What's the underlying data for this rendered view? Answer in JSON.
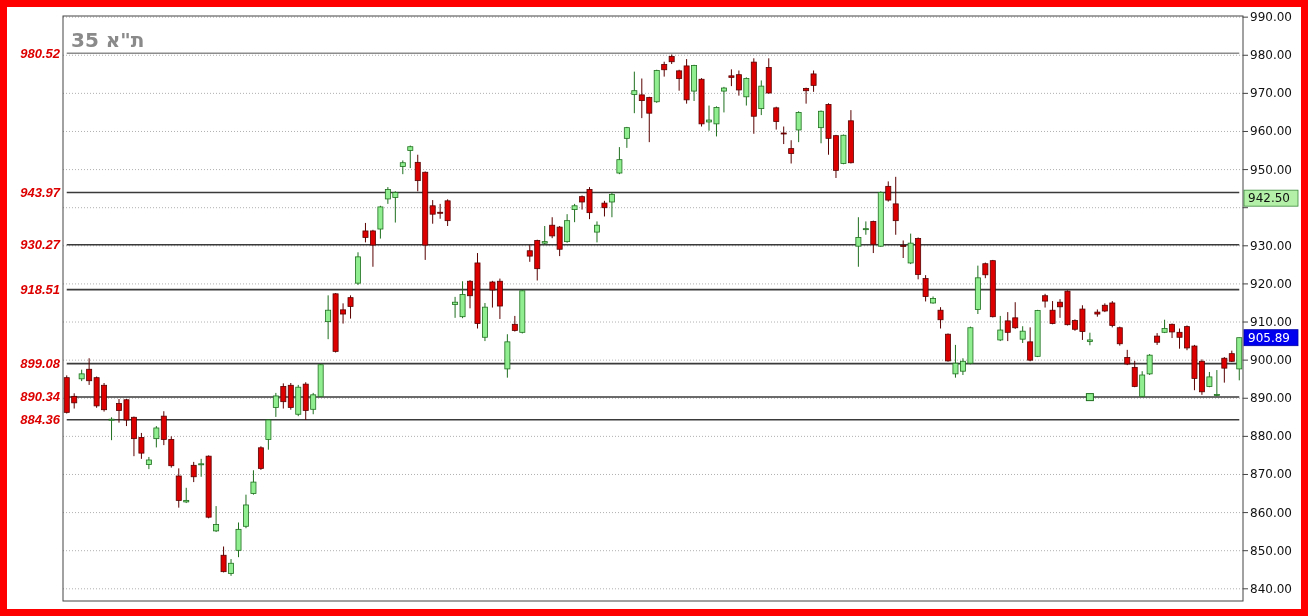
{
  "chart_data": {
    "type": "candlestick",
    "title": "ת\"א 35",
    "categories": [
      null,
      null,
      null,
      null,
      null,
      null,
      null,
      null,
      null,
      null,
      null,
      null,
      null,
      null,
      null,
      null,
      null,
      null,
      null,
      null,
      null,
      null,
      null,
      null,
      null,
      null,
      null,
      null,
      null,
      null,
      null,
      null,
      null,
      null,
      null,
      null,
      null,
      null,
      null,
      null,
      null,
      null,
      null,
      null,
      null,
      null,
      null,
      null,
      null,
      null,
      null,
      null,
      null,
      null,
      null,
      null,
      null,
      null,
      null,
      null,
      null,
      null,
      null,
      null,
      null,
      null,
      null,
      null,
      null,
      null,
      null,
      null,
      null,
      null,
      null,
      null,
      null,
      null,
      null,
      null,
      null,
      null,
      null,
      null,
      null,
      null,
      null,
      null,
      null,
      null,
      null,
      null,
      null,
      null,
      null,
      null,
      null,
      null,
      null,
      null,
      null,
      null,
      null,
      null,
      null,
      null,
      null,
      null,
      null,
      null,
      null,
      null,
      null,
      null,
      null,
      null,
      null,
      null,
      null,
      null,
      null,
      null,
      null,
      null,
      null,
      null,
      null,
      null,
      null,
      null,
      null,
      null,
      null,
      null,
      null,
      null,
      null,
      null,
      null,
      null,
      null,
      null,
      null,
      null,
      null,
      null,
      null,
      null,
      null,
      null,
      null,
      null,
      null,
      null,
      null,
      null,
      null,
      null
    ],
    "ohlc": [
      [
        895.4,
        896,
        886,
        886.3
      ],
      [
        890.5,
        891.3,
        887.3,
        888.8
      ],
      [
        895.1,
        897.5,
        894.5,
        896.4
      ],
      [
        897.6,
        900.5,
        893.5,
        894.6
      ],
      [
        895.4,
        895.7,
        887.5,
        888
      ],
      [
        893.4,
        894,
        886.5,
        887
      ],
      [
        884.5,
        885,
        879,
        884.5
      ],
      [
        888.6,
        889.8,
        883.6,
        886.8
      ],
      [
        889.6,
        889.8,
        882.7,
        884.3
      ],
      [
        885,
        885.2,
        874.8,
        879.4
      ],
      [
        879.7,
        880.9,
        874.1,
        875.6
      ],
      [
        872.6,
        874.6,
        871.4,
        873.8
      ],
      [
        879.4,
        882.7,
        877.1,
        882.2
      ],
      [
        885.3,
        886.6,
        877.7,
        879.2
      ],
      [
        879.2,
        880,
        871.8,
        872.3
      ],
      [
        869.6,
        871.6,
        861.3,
        863.2
      ],
      [
        862.8,
        866.5,
        862.5,
        863.2
      ],
      [
        872.4,
        873.3,
        868,
        869.4
      ],
      [
        872.6,
        874.1,
        869.4,
        872.8
      ],
      [
        874.8,
        875,
        858.5,
        858.8
      ],
      [
        855.2,
        861.7,
        854.9,
        856.9
      ],
      [
        848.8,
        851.1,
        844.3,
        844.5
      ],
      [
        844,
        847.8,
        843.4,
        846.7
      ],
      [
        850.1,
        857.4,
        848.3,
        855.6
      ],
      [
        856.4,
        864.7,
        855.9,
        862
      ],
      [
        865,
        871.1,
        864.7,
        868
      ],
      [
        877,
        877.4,
        871.2,
        871.6
      ],
      [
        879.2,
        884.5,
        876.5,
        884.3
      ],
      [
        887.6,
        891.4,
        885.1,
        890.6
      ],
      [
        893.1,
        893.9,
        887.3,
        889.1
      ],
      [
        893.4,
        894,
        887,
        887.6
      ],
      [
        885.8,
        893.5,
        885.3,
        892.9
      ],
      [
        893.7,
        894.2,
        884.3,
        886.8
      ],
      [
        887.1,
        891.4,
        885.8,
        890.9
      ],
      [
        890.5,
        899,
        890.5,
        898.8
      ],
      [
        910.1,
        917,
        905.5,
        913.1
      ],
      [
        917.4,
        917.6,
        902,
        902.3
      ],
      [
        913.2,
        914.9,
        909.6,
        912.1
      ],
      [
        916.4,
        917,
        910.9,
        914.1
      ],
      [
        920.2,
        928.3,
        919.7,
        927.1
      ],
      [
        933.9,
        936,
        930.9,
        932.2
      ],
      [
        933.9,
        934.2,
        924.5,
        930.2
      ],
      [
        934.4,
        940.5,
        931.9,
        940.2
      ],
      [
        942.3,
        945.4,
        941,
        944.8
      ],
      [
        942.7,
        944.3,
        936.1,
        944
      ],
      [
        950.8,
        952.4,
        948.8,
        951.8
      ],
      [
        955,
        956.3,
        950.4,
        956
      ],
      [
        951.9,
        953.9,
        944.3,
        947.1
      ],
      [
        949.3,
        949.5,
        926.3,
        930.2
      ],
      [
        940.5,
        942,
        935.8,
        938.3
      ],
      [
        938.8,
        941,
        937.1,
        938.6
      ],
      [
        941.8,
        942.2,
        935.2,
        936.6
      ],
      [
        914.6,
        916.6,
        911.1,
        915.2
      ],
      [
        911.4,
        920.7,
        911,
        917.2
      ],
      [
        920.7,
        921,
        913.6,
        916.9
      ],
      [
        925.5,
        928.1,
        908.3,
        909.6
      ],
      [
        906,
        915,
        905,
        913.9
      ],
      [
        920.5,
        920.8,
        913.8,
        918.4
      ],
      [
        920.7,
        921.4,
        910.8,
        914.2
      ],
      [
        897.7,
        906.8,
        895.4,
        904.8
      ],
      [
        909.4,
        911.6,
        907.5,
        907.8
      ],
      [
        907.3,
        918.4,
        907,
        918.2
      ],
      [
        928.7,
        930.2,
        925.8,
        927.3
      ],
      [
        931.4,
        931.6,
        920.9,
        924
      ],
      [
        930.7,
        935.2,
        930.3,
        931.1
      ],
      [
        935.4,
        937.5,
        932,
        932.6
      ],
      [
        934.9,
        935.2,
        927.3,
        929.1
      ],
      [
        931.1,
        938.3,
        930.8,
        936.6
      ],
      [
        939.5,
        941,
        936.2,
        940.5
      ],
      [
        942.9,
        943.2,
        939.5,
        941.5
      ],
      [
        944.8,
        945.4,
        937,
        938.7
      ],
      [
        933.6,
        936.4,
        930.9,
        935.4
      ],
      [
        941.2,
        941.8,
        937.7,
        940
      ],
      [
        941.5,
        944,
        937.5,
        943.5
      ],
      [
        949.1,
        955.9,
        948.8,
        952.6
      ],
      [
        958.2,
        961.2,
        955.7,
        961
      ],
      [
        969.7,
        975.7,
        964.8,
        970.7
      ],
      [
        969.6,
        973.9,
        963.5,
        968.1
      ],
      [
        968.9,
        969.1,
        957.2,
        964.8
      ],
      [
        967.8,
        976.2,
        967.5,
        976
      ],
      [
        977.6,
        978.3,
        974.4,
        976.2
      ],
      [
        979.7,
        980.2,
        977.7,
        978.3
      ],
      [
        975.9,
        976.2,
        970.7,
        973.9
      ],
      [
        977.2,
        979,
        967.3,
        968.3
      ],
      [
        970.6,
        977.5,
        968,
        977.3
      ],
      [
        973.7,
        974,
        961.3,
        962
      ],
      [
        962.5,
        966.8,
        960.2,
        963
      ],
      [
        962,
        966.6,
        958.7,
        966.3
      ],
      [
        970.6,
        971.7,
        965,
        971.4
      ],
      [
        974.6,
        976.3,
        971.9,
        974.2
      ],
      [
        974.9,
        976,
        969.4,
        970.9
      ],
      [
        969.1,
        974.2,
        966.8,
        973.9
      ],
      [
        978.2,
        979.2,
        959.4,
        964
      ],
      [
        966,
        973.4,
        964.3,
        971.9
      ],
      [
        976.8,
        979.2,
        969.9,
        970.1
      ],
      [
        966.2,
        966.5,
        960.5,
        962.6
      ],
      [
        959.6,
        961.3,
        956.7,
        959.4
      ],
      [
        955.5,
        957.7,
        951.6,
        954.2
      ],
      [
        960.4,
        965.3,
        957.2,
        965
      ],
      [
        971.3,
        971.5,
        967.3,
        970.7
      ],
      [
        975.1,
        976,
        970.4,
        972.1
      ],
      [
        961,
        965.5,
        956.9,
        965.3
      ],
      [
        967.1,
        967.4,
        953.9,
        958.2
      ],
      [
        958.9,
        959.1,
        947.8,
        949.8
      ],
      [
        951.6,
        959.2,
        951.4,
        959
      ],
      [
        962.8,
        965.6,
        951.6,
        951.8
      ],
      [
        929.9,
        937.5,
        924.5,
        932.2
      ],
      [
        934.3,
        936.4,
        932.9,
        934.5
      ],
      [
        936.4,
        936.6,
        928.1,
        930.4
      ],
      [
        929.9,
        944.3,
        929.7,
        944
      ],
      [
        945.6,
        946.9,
        941.6,
        942
      ],
      [
        941,
        948.1,
        932.9,
        936.6
      ],
      [
        930.1,
        931.4,
        926.8,
        929.9
      ],
      [
        925.5,
        933.2,
        925.2,
        930.7
      ],
      [
        931.9,
        932.2,
        921.2,
        922.5
      ],
      [
        921.4,
        922.3,
        915.4,
        916.7
      ],
      [
        915,
        916.7,
        914.8,
        916.2
      ],
      [
        913.1,
        913.9,
        908.3,
        910.6
      ],
      [
        906.8,
        907,
        899.6,
        899.8
      ],
      [
        896.4,
        904,
        895.4,
        899.2
      ],
      [
        897.1,
        900.5,
        896.1,
        899.7
      ],
      [
        899.2,
        908.8,
        898.9,
        908.5
      ],
      [
        913.3,
        924.8,
        912.1,
        921.6
      ],
      [
        925.3,
        925.6,
        921.5,
        922.4
      ],
      [
        926.1,
        926.3,
        911.2,
        911.4
      ],
      [
        905.3,
        911.6,
        905,
        907.9
      ],
      [
        910.3,
        912.6,
        905,
        907.3
      ],
      [
        911.1,
        915.2,
        908.2,
        908.5
      ],
      [
        905.5,
        908.9,
        904.5,
        907.6
      ],
      [
        904.8,
        908.6,
        899.7,
        900
      ],
      [
        901,
        913.2,
        900.8,
        913
      ],
      [
        916.9,
        917.4,
        913.8,
        915.5
      ],
      [
        913.1,
        915.5,
        909.4,
        909.6
      ],
      [
        915.2,
        916,
        911.1,
        914
      ],
      [
        918.1,
        918.3,
        909.1,
        909.3
      ],
      [
        910.4,
        910.7,
        907.7,
        908.1
      ],
      [
        913.4,
        914.4,
        905.3,
        907.5
      ],
      [
        904.9,
        907.2,
        903.9,
        905.3
      ],
      [
        912.6,
        913.3,
        911.4,
        912.1
      ],
      [
        914.4,
        914.9,
        912.6,
        912.9
      ],
      [
        915,
        915.5,
        908.6,
        909.1
      ],
      [
        908.5,
        908.8,
        903.8,
        904.3
      ],
      [
        900.7,
        902.7,
        898.7,
        899
      ],
      [
        898.1,
        899.8,
        892.9,
        893.1
      ],
      [
        890.5,
        897.1,
        890.3,
        896.1
      ],
      [
        896.4,
        901.6,
        896.1,
        901.3
      ],
      [
        906.3,
        907.1,
        904,
        904.7
      ],
      [
        907.3,
        910.6,
        907.1,
        908.3
      ],
      [
        909.4,
        909.6,
        905.8,
        907.4
      ],
      [
        907.3,
        908.3,
        903,
        906
      ],
      [
        908.8,
        909.1,
        902.6,
        903.2
      ],
      [
        903.7,
        904,
        892.1,
        895.2
      ],
      [
        899.7,
        900.2,
        890.9,
        891.7
      ],
      [
        893.1,
        896.9,
        892.9,
        895.6
      ],
      [
        891,
        897.4,
        890.5,
        891
      ],
      [
        900.5,
        900.8,
        894.1,
        897.9
      ],
      [
        901.7,
        902.5,
        899.5,
        899.7
      ],
      [
        897.7,
        905.9,
        894.7,
        905.89
      ]
    ],
    "series": [
      {
        "type": "line",
        "name": "980.52",
        "color": "#8c8c8c",
        "values": [
          980.52,
          980.52,
          980.52,
          980.52,
          980.52,
          980.52,
          980.52,
          980.52,
          980.52,
          980.52,
          980.52,
          980.52,
          980.52,
          980.52,
          980.52,
          980.52,
          980.52,
          980.52,
          980.52,
          980.52,
          980.52,
          980.52,
          980.52,
          980.52,
          980.52,
          980.52,
          980.52,
          980.52,
          980.52,
          980.52,
          980.52,
          980.52,
          980.52,
          980.52,
          980.52,
          980.52,
          980.52,
          980.52,
          980.52,
          980.52,
          980.52,
          980.52,
          980.52,
          980.52,
          980.52,
          980.52,
          980.52,
          980.52,
          980.52,
          980.52,
          980.52,
          980.52,
          980.52,
          980.52,
          980.52,
          980.52,
          980.52,
          980.52,
          980.52,
          980.52,
          980.52,
          980.52,
          980.52,
          980.52,
          980.52,
          980.52,
          980.52,
          980.52,
          980.52,
          980.52,
          980.52,
          980.52,
          980.52,
          980.52,
          980.52,
          980.52,
          980.52,
          980.52,
          980.52,
          980.52,
          980.52,
          980.52,
          980.52,
          980.52,
          980.52,
          980.52,
          980.52,
          980.52,
          980.52,
          980.52,
          980.52,
          980.52,
          980.52,
          980.52,
          980.52,
          980.52,
          980.52,
          980.52,
          980.52,
          980.52,
          980.52,
          980.52,
          980.52,
          980.52,
          980.52,
          980.52,
          980.52,
          980.52,
          980.52,
          980.52,
          980.52,
          980.52,
          980.52,
          980.52,
          980.52,
          980.52,
          980.52,
          980.52,
          980.52,
          980.52,
          980.52,
          980.52,
          980.52,
          980.52,
          980.52,
          980.52,
          980.52,
          980.52,
          980.52,
          980.52,
          980.52,
          980.52,
          980.52,
          980.52,
          980.52,
          980.52,
          980.52,
          980.52,
          980.52,
          980.52,
          980.52,
          980.52,
          980.52,
          980.52,
          980.52,
          980.52,
          980.52,
          980.52,
          980.52,
          980.52,
          980.52,
          980.52,
          980.52,
          980.52,
          980.52,
          980.52,
          980.52,
          980.52
        ]
      },
      {
        "type": "line",
        "name": "943.97",
        "color": "#3a3a3a",
        "values": [
          943.97,
          943.97,
          943.97,
          943.97,
          943.97,
          943.97,
          943.97,
          943.97,
          943.97,
          943.97,
          943.97,
          943.97,
          943.97,
          943.97,
          943.97,
          943.97,
          943.97,
          943.97,
          943.97,
          943.97,
          943.97,
          943.97,
          943.97,
          943.97,
          943.97,
          943.97,
          943.97,
          943.97,
          943.97,
          943.97,
          943.97,
          943.97,
          943.97,
          943.97,
          943.97,
          943.97,
          943.97,
          943.97,
          943.97,
          943.97,
          943.97,
          943.97,
          943.97,
          943.97,
          943.97,
          943.97,
          943.97,
          943.97,
          943.97,
          943.97,
          943.97,
          943.97,
          943.97,
          943.97,
          943.97,
          943.97,
          943.97,
          943.97,
          943.97,
          943.97,
          943.97,
          943.97,
          943.97,
          943.97,
          943.97,
          943.97,
          943.97,
          943.97,
          943.97,
          943.97,
          943.97,
          943.97,
          943.97,
          943.97,
          943.97,
          943.97,
          943.97,
          943.97,
          943.97,
          943.97,
          943.97,
          943.97,
          943.97,
          943.97,
          943.97,
          943.97,
          943.97,
          943.97,
          943.97,
          943.97,
          943.97,
          943.97,
          943.97,
          943.97,
          943.97,
          943.97,
          943.97,
          943.97,
          943.97,
          943.97,
          943.97,
          943.97,
          943.97,
          943.97,
          943.97,
          943.97,
          943.97,
          943.97,
          943.97,
          943.97,
          943.97,
          943.97,
          943.97,
          943.97,
          943.97,
          943.97,
          943.97,
          943.97,
          943.97,
          943.97,
          943.97,
          943.97,
          943.97,
          943.97,
          943.97,
          943.97,
          943.97,
          943.97,
          943.97,
          943.97,
          943.97,
          943.97,
          943.97,
          943.97,
          943.97,
          943.97,
          943.97,
          943.97,
          943.97,
          943.97,
          943.97,
          943.97,
          943.97,
          943.97,
          943.97,
          943.97,
          943.97,
          943.97,
          943.97,
          943.97,
          943.97,
          943.97,
          943.97,
          943.97,
          943.97,
          943.97,
          943.97,
          943.97
        ]
      },
      {
        "type": "line",
        "name": "930.27",
        "color": "#3a3a3a",
        "values": [
          930.27,
          930.27,
          930.27,
          930.27,
          930.27,
          930.27,
          930.27,
          930.27,
          930.27,
          930.27,
          930.27,
          930.27,
          930.27,
          930.27,
          930.27,
          930.27,
          930.27,
          930.27,
          930.27,
          930.27,
          930.27,
          930.27,
          930.27,
          930.27,
          930.27,
          930.27,
          930.27,
          930.27,
          930.27,
          930.27,
          930.27,
          930.27,
          930.27,
          930.27,
          930.27,
          930.27,
          930.27,
          930.27,
          930.27,
          930.27,
          930.27,
          930.27,
          930.27,
          930.27,
          930.27,
          930.27,
          930.27,
          930.27,
          930.27,
          930.27,
          930.27,
          930.27,
          930.27,
          930.27,
          930.27,
          930.27,
          930.27,
          930.27,
          930.27,
          930.27,
          930.27,
          930.27,
          930.27,
          930.27,
          930.27,
          930.27,
          930.27,
          930.27,
          930.27,
          930.27,
          930.27,
          930.27,
          930.27,
          930.27,
          930.27,
          930.27,
          930.27,
          930.27,
          930.27,
          930.27,
          930.27,
          930.27,
          930.27,
          930.27,
          930.27,
          930.27,
          930.27,
          930.27,
          930.27,
          930.27,
          930.27,
          930.27,
          930.27,
          930.27,
          930.27,
          930.27,
          930.27,
          930.27,
          930.27,
          930.27,
          930.27,
          930.27,
          930.27,
          930.27,
          930.27,
          930.27,
          930.27,
          930.27,
          930.27,
          930.27,
          930.27,
          930.27,
          930.27,
          930.27,
          930.27,
          930.27,
          930.27,
          930.27,
          930.27,
          930.27,
          930.27,
          930.27,
          930.27,
          930.27,
          930.27,
          930.27,
          930.27,
          930.27,
          930.27,
          930.27,
          930.27,
          930.27,
          930.27,
          930.27,
          930.27,
          930.27,
          930.27,
          930.27,
          930.27,
          930.27,
          930.27,
          930.27,
          930.27,
          930.27,
          930.27,
          930.27,
          930.27,
          930.27,
          930.27,
          930.27,
          930.27,
          930.27,
          930.27,
          930.27,
          930.27,
          930.27,
          930.27,
          930.27
        ]
      },
      {
        "type": "line",
        "name": "918.51",
        "color": "#3a3a3a",
        "values": [
          918.51,
          918.51,
          918.51,
          918.51,
          918.51,
          918.51,
          918.51,
          918.51,
          918.51,
          918.51,
          918.51,
          918.51,
          918.51,
          918.51,
          918.51,
          918.51,
          918.51,
          918.51,
          918.51,
          918.51,
          918.51,
          918.51,
          918.51,
          918.51,
          918.51,
          918.51,
          918.51,
          918.51,
          918.51,
          918.51,
          918.51,
          918.51,
          918.51,
          918.51,
          918.51,
          918.51,
          918.51,
          918.51,
          918.51,
          918.51,
          918.51,
          918.51,
          918.51,
          918.51,
          918.51,
          918.51,
          918.51,
          918.51,
          918.51,
          918.51,
          918.51,
          918.51,
          918.51,
          918.51,
          918.51,
          918.51,
          918.51,
          918.51,
          918.51,
          918.51,
          918.51,
          918.51,
          918.51,
          918.51,
          918.51,
          918.51,
          918.51,
          918.51,
          918.51,
          918.51,
          918.51,
          918.51,
          918.51,
          918.51,
          918.51,
          918.51,
          918.51,
          918.51,
          918.51,
          918.51,
          918.51,
          918.51,
          918.51,
          918.51,
          918.51,
          918.51,
          918.51,
          918.51,
          918.51,
          918.51,
          918.51,
          918.51,
          918.51,
          918.51,
          918.51,
          918.51,
          918.51,
          918.51,
          918.51,
          918.51,
          918.51,
          918.51,
          918.51,
          918.51,
          918.51,
          918.51,
          918.51,
          918.51,
          918.51,
          918.51,
          918.51,
          918.51,
          918.51,
          918.51,
          918.51,
          918.51,
          918.51,
          918.51,
          918.51,
          918.51,
          918.51,
          918.51,
          918.51,
          918.51,
          918.51,
          918.51,
          918.51,
          918.51,
          918.51,
          918.51,
          918.51,
          918.51,
          918.51,
          918.51,
          918.51,
          918.51,
          918.51,
          918.51,
          918.51,
          918.51,
          918.51,
          918.51,
          918.51,
          918.51,
          918.51,
          918.51,
          918.51,
          918.51,
          918.51,
          918.51,
          918.51,
          918.51,
          918.51,
          918.51,
          918.51,
          918.51,
          918.51,
          918.51
        ]
      },
      {
        "type": "line",
        "name": "899.08",
        "color": "#3a3a3a",
        "values": [
          899.08,
          899.08,
          899.08,
          899.08,
          899.08,
          899.08,
          899.08,
          899.08,
          899.08,
          899.08,
          899.08,
          899.08,
          899.08,
          899.08,
          899.08,
          899.08,
          899.08,
          899.08,
          899.08,
          899.08,
          899.08,
          899.08,
          899.08,
          899.08,
          899.08,
          899.08,
          899.08,
          899.08,
          899.08,
          899.08,
          899.08,
          899.08,
          899.08,
          899.08,
          899.08,
          899.08,
          899.08,
          899.08,
          899.08,
          899.08,
          899.08,
          899.08,
          899.08,
          899.08,
          899.08,
          899.08,
          899.08,
          899.08,
          899.08,
          899.08,
          899.08,
          899.08,
          899.08,
          899.08,
          899.08,
          899.08,
          899.08,
          899.08,
          899.08,
          899.08,
          899.08,
          899.08,
          899.08,
          899.08,
          899.08,
          899.08,
          899.08,
          899.08,
          899.08,
          899.08,
          899.08,
          899.08,
          899.08,
          899.08,
          899.08,
          899.08,
          899.08,
          899.08,
          899.08,
          899.08,
          899.08,
          899.08,
          899.08,
          899.08,
          899.08,
          899.08,
          899.08,
          899.08,
          899.08,
          899.08,
          899.08,
          899.08,
          899.08,
          899.08,
          899.08,
          899.08,
          899.08,
          899.08,
          899.08,
          899.08,
          899.08,
          899.08,
          899.08,
          899.08,
          899.08,
          899.08,
          899.08,
          899.08,
          899.08,
          899.08,
          899.08,
          899.08,
          899.08,
          899.08,
          899.08,
          899.08,
          899.08,
          899.08,
          899.08,
          899.08,
          899.08,
          899.08,
          899.08,
          899.08,
          899.08,
          899.08,
          899.08,
          899.08,
          899.08,
          899.08,
          899.08,
          899.08,
          899.08,
          899.08,
          899.08,
          899.08,
          899.08,
          899.08,
          899.08,
          899.08,
          899.08,
          899.08,
          899.08,
          899.08,
          899.08,
          899.08,
          899.08,
          899.08,
          899.08,
          899.08,
          899.08,
          899.08,
          899.08,
          899.08,
          899.08,
          899.08,
          899.08,
          899.08
        ]
      },
      {
        "type": "line",
        "name": "890.34",
        "color": "#3a3a3a",
        "values": [
          890.34,
          890.34,
          890.34,
          890.34,
          890.34,
          890.34,
          890.34,
          890.34,
          890.34,
          890.34,
          890.34,
          890.34,
          890.34,
          890.34,
          890.34,
          890.34,
          890.34,
          890.34,
          890.34,
          890.34,
          890.34,
          890.34,
          890.34,
          890.34,
          890.34,
          890.34,
          890.34,
          890.34,
          890.34,
          890.34,
          890.34,
          890.34,
          890.34,
          890.34,
          890.34,
          890.34,
          890.34,
          890.34,
          890.34,
          890.34,
          890.34,
          890.34,
          890.34,
          890.34,
          890.34,
          890.34,
          890.34,
          890.34,
          890.34,
          890.34,
          890.34,
          890.34,
          890.34,
          890.34,
          890.34,
          890.34,
          890.34,
          890.34,
          890.34,
          890.34,
          890.34,
          890.34,
          890.34,
          890.34,
          890.34,
          890.34,
          890.34,
          890.34,
          890.34,
          890.34,
          890.34,
          890.34,
          890.34,
          890.34,
          890.34,
          890.34,
          890.34,
          890.34,
          890.34,
          890.34,
          890.34,
          890.34,
          890.34,
          890.34,
          890.34,
          890.34,
          890.34,
          890.34,
          890.34,
          890.34,
          890.34,
          890.34,
          890.34,
          890.34,
          890.34,
          890.34,
          890.34,
          890.34,
          890.34,
          890.34,
          890.34,
          890.34,
          890.34,
          890.34,
          890.34,
          890.34,
          890.34,
          890.34,
          890.34,
          890.34,
          890.34,
          890.34,
          890.34,
          890.34,
          890.34,
          890.34,
          890.34,
          890.34,
          890.34,
          890.34,
          890.34,
          890.34,
          890.34,
          890.34,
          890.34,
          890.34,
          890.34,
          890.34,
          890.34,
          890.34,
          890.34,
          890.34,
          890.34,
          890.34,
          890.34,
          890.34,
          890.34,
          890.34,
          890.34,
          890.34,
          890.34,
          890.34,
          890.34,
          890.34,
          890.34,
          890.34,
          890.34,
          890.34,
          890.34,
          890.34,
          890.34,
          890.34,
          890.34,
          890.34,
          890.34,
          890.34,
          890.34,
          890.34
        ]
      },
      {
        "type": "line",
        "name": "884.36",
        "color": "#3a3a3a",
        "values": [
          884.36,
          884.36,
          884.36,
          884.36,
          884.36,
          884.36,
          884.36,
          884.36,
          884.36,
          884.36,
          884.36,
          884.36,
          884.36,
          884.36,
          884.36,
          884.36,
          884.36,
          884.36,
          884.36,
          884.36,
          884.36,
          884.36,
          884.36,
          884.36,
          884.36,
          884.36,
          884.36,
          884.36,
          884.36,
          884.36,
          884.36,
          884.36,
          884.36,
          884.36,
          884.36,
          884.36,
          884.36,
          884.36,
          884.36,
          884.36,
          884.36,
          884.36,
          884.36,
          884.36,
          884.36,
          884.36,
          884.36,
          884.36,
          884.36,
          884.36,
          884.36,
          884.36,
          884.36,
          884.36,
          884.36,
          884.36,
          884.36,
          884.36,
          884.36,
          884.36,
          884.36,
          884.36,
          884.36,
          884.36,
          884.36,
          884.36,
          884.36,
          884.36,
          884.36,
          884.36,
          884.36,
          884.36,
          884.36,
          884.36,
          884.36,
          884.36,
          884.36,
          884.36,
          884.36,
          884.36,
          884.36,
          884.36,
          884.36,
          884.36,
          884.36,
          884.36,
          884.36,
          884.36,
          884.36,
          884.36,
          884.36,
          884.36,
          884.36,
          884.36,
          884.36,
          884.36,
          884.36,
          884.36,
          884.36,
          884.36,
          884.36,
          884.36,
          884.36,
          884.36,
          884.36,
          884.36,
          884.36,
          884.36,
          884.36,
          884.36,
          884.36,
          884.36,
          884.36,
          884.36,
          884.36,
          884.36,
          884.36,
          884.36,
          884.36,
          884.36,
          884.36,
          884.36,
          884.36,
          884.36,
          884.36,
          884.36,
          884.36,
          884.36,
          884.36,
          884.36,
          884.36,
          884.36,
          884.36,
          884.36,
          884.36,
          884.36,
          884.36,
          884.36,
          884.36,
          884.36,
          884.36,
          884.36,
          884.36,
          884.36,
          884.36,
          884.36,
          884.36,
          884.36,
          884.36,
          884.36,
          884.36,
          884.36,
          884.36,
          884.36,
          884.36,
          884.36,
          884.36,
          884.36
        ]
      },
      {
        "type": "scatter",
        "marker": "square",
        "color": "#90ee90",
        "values": [
          null,
          null,
          null,
          null,
          null,
          null,
          null,
          null,
          null,
          null,
          null,
          null,
          null,
          null,
          null,
          null,
          null,
          null,
          null,
          null,
          null,
          null,
          null,
          null,
          null,
          null,
          null,
          null,
          null,
          null,
          null,
          null,
          null,
          null,
          null,
          null,
          null,
          null,
          null,
          null,
          null,
          null,
          null,
          null,
          null,
          null,
          null,
          null,
          null,
          null,
          null,
          null,
          null,
          null,
          null,
          null,
          null,
          null,
          null,
          null,
          null,
          null,
          null,
          null,
          null,
          null,
          null,
          null,
          null,
          null,
          null,
          null,
          null,
          null,
          null,
          null,
          null,
          null,
          null,
          null,
          null,
          null,
          null,
          null,
          null,
          null,
          null,
          null,
          null,
          null,
          null,
          null,
          null,
          null,
          null,
          null,
          null,
          null,
          null,
          null,
          null,
          null,
          null,
          null,
          null,
          null,
          null,
          null,
          null,
          null,
          null,
          null,
          null,
          null,
          null,
          null,
          null,
          null,
          null,
          null,
          null,
          null,
          null,
          null,
          null,
          null,
          null,
          null,
          null,
          null,
          null,
          null,
          null,
          null,
          null,
          null,
          null,
          890.3,
          null,
          null,
          null,
          null,
          null,
          null,
          null,
          null,
          null,
          null,
          null,
          null,
          null,
          null,
          null,
          null,
          null,
          null,
          null,
          null
        ]
      }
    ],
    "ylim": [
      836.8,
      990.3
    ],
    "yticks": [
      {
        "value": 840,
        "label": "840.00"
      },
      {
        "value": 850,
        "label": "850.00"
      },
      {
        "value": 860,
        "label": "860.00"
      },
      {
        "value": 870,
        "label": "870.00"
      },
      {
        "value": 880,
        "label": "880.00"
      },
      {
        "value": 890,
        "label": "890.00"
      },
      {
        "value": 900,
        "label": "900.00"
      },
      {
        "value": 910,
        "label": "910.00"
      },
      {
        "value": 920,
        "label": "920.00"
      },
      {
        "value": 930,
        "label": "930.00"
      },
      {
        "value": 940,
        "label": null
      },
      {
        "value": 950,
        "label": "950.00"
      },
      {
        "value": 960,
        "label": "960.00"
      },
      {
        "value": 970,
        "label": "970.00"
      },
      {
        "value": 980,
        "label": "980.00"
      },
      {
        "value": 990,
        "label": "990.00"
      }
    ],
    "annotations": [
      "942.50",
      "905.89"
    ],
    "grid": "y",
    "tick_labels": "y"
  }
}
